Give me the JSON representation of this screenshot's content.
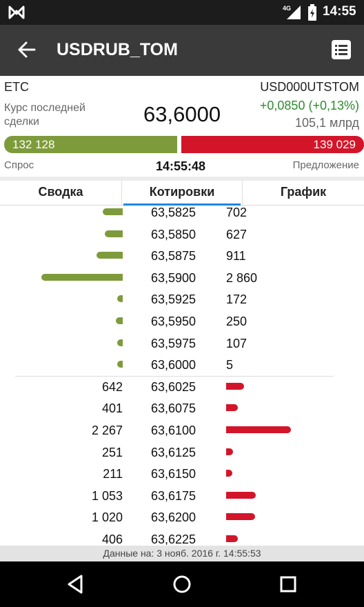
{
  "status": {
    "time": "14:55",
    "network": "4G"
  },
  "appbar": {
    "title": "USDRUB_TOM"
  },
  "instrument": {
    "board": "ETC",
    "code": "USD000UTSTOM",
    "last_label": "Курс последней сделки",
    "last_price": "63,6000",
    "change": "+0,0850 (+0,13%)",
    "volume": "105,1 млрд",
    "bid_total": "132 128",
    "ask_total": "139 029",
    "bid_fraction": 0.487,
    "bid_label": "Спрос",
    "update_time": "14:55:48",
    "ask_label": "Предложение"
  },
  "tabs": [
    {
      "label": "Сводка",
      "active": false
    },
    {
      "label": "Котировки",
      "active": true
    },
    {
      "label": "График",
      "active": false
    }
  ],
  "order_book": {
    "bids": [
      {
        "price": "63,5825",
        "volume": "702",
        "qty": 702
      },
      {
        "price": "63,5850",
        "volume": "627",
        "qty": 627
      },
      {
        "price": "63,5875",
        "volume": "911",
        "qty": 911
      },
      {
        "price": "63,5900",
        "volume": "2 860",
        "qty": 2860
      },
      {
        "price": "63,5925",
        "volume": "172",
        "qty": 172
      },
      {
        "price": "63,5950",
        "volume": "250",
        "qty": 250
      },
      {
        "price": "63,5975",
        "volume": "107",
        "qty": 107
      },
      {
        "price": "63,6000",
        "volume": "5",
        "qty": 5
      }
    ],
    "asks": [
      {
        "price": "63,6025",
        "volume": "642",
        "qty": 642
      },
      {
        "price": "63,6075",
        "volume": "401",
        "qty": 401
      },
      {
        "price": "63,6100",
        "volume": "2 267",
        "qty": 2267
      },
      {
        "price": "63,6125",
        "volume": "251",
        "qty": 251
      },
      {
        "price": "63,6150",
        "volume": "211",
        "qty": 211
      },
      {
        "price": "63,6175",
        "volume": "1 053",
        "qty": 1053
      },
      {
        "price": "63,6200",
        "volume": "1 020",
        "qty": 1020
      },
      {
        "price": "63,6225",
        "volume": "406",
        "qty": 406
      }
    ]
  },
  "footer": {
    "text": "Данные на: 3 нояб. 2016 г. 14:55:53"
  },
  "colors": {
    "bid": "#7e9b3c",
    "ask": "#d3152a",
    "change": "#2e8b2e",
    "tab_indicator": "#1e88e5",
    "appbar": "#3a3a3a"
  }
}
